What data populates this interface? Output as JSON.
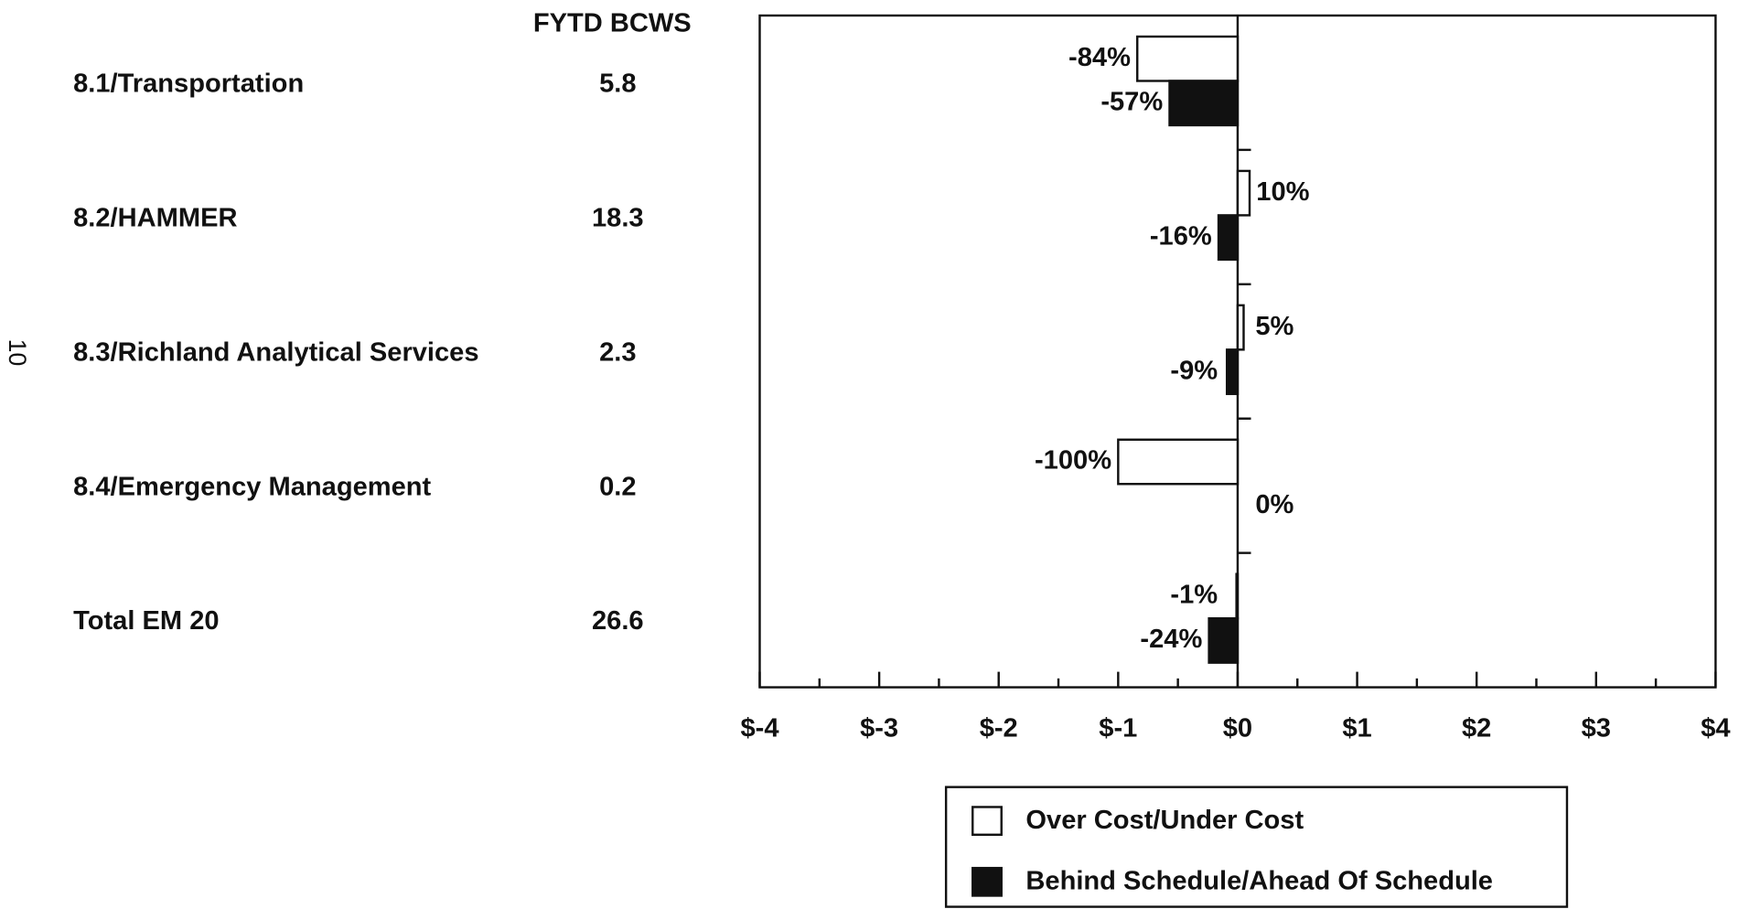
{
  "page_number": "10",
  "chart_data": {
    "type": "bar",
    "orientation": "horizontal",
    "table_header": "FYTD BCWS",
    "categories": [
      "8.1/Transportation",
      "8.2/HAMMER",
      "8.3/Richland Analytical Services",
      "8.4/Emergency Management",
      "Total EM 20"
    ],
    "bcws": [
      5.8,
      18.3,
      2.3,
      0.2,
      26.6
    ],
    "series": [
      {
        "name": "Over Cost/Under Cost",
        "color": "#ffffff",
        "values": [
          -0.84,
          0.1,
          0.05,
          -1.0,
          -0.01
        ],
        "value_labels": [
          "-84%",
          "10%",
          "5%",
          "-100%",
          "-1%"
        ]
      },
      {
        "name": "Behind Schedule/Ahead Of Schedule",
        "color": "#111111",
        "values": [
          -0.57,
          -0.16,
          -0.09,
          0,
          -0.24
        ],
        "value_labels": [
          "-57%",
          "-16%",
          "-9%",
          "0%",
          "-24%"
        ]
      }
    ],
    "xlim": [
      -4,
      4
    ],
    "xticks": [
      {
        "value": -4,
        "label": "$-4"
      },
      {
        "value": -3,
        "label": "$-3"
      },
      {
        "value": -2,
        "label": "$-2"
      },
      {
        "value": -1,
        "label": "$-1"
      },
      {
        "value": 0,
        "label": "$0"
      },
      {
        "value": 1,
        "label": "$1"
      },
      {
        "value": 2,
        "label": "$2"
      },
      {
        "value": 3,
        "label": "$3"
      },
      {
        "value": 4,
        "label": "$4"
      }
    ],
    "xminorticks": [
      -3.5,
      -2.5,
      -1.5,
      -0.5,
      0.5,
      1.5,
      2.5,
      3.5
    ],
    "legend": "bottom"
  }
}
